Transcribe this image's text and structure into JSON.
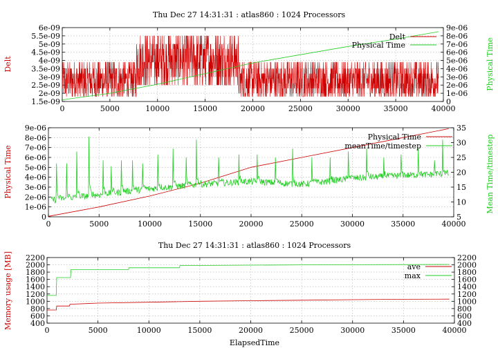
{
  "figure": {
    "title_top": "Thu Dec 27 14:31:31 : atlas860 : 1024 Processors",
    "title_bottom": "Thu Dec 27 14:31:31 : atlas860 : 1024 Processors"
  },
  "colors": {
    "red": "#cc0000",
    "green": "#22cc22",
    "grid": "#b0b0b0"
  },
  "chart_data": [
    {
      "type": "line",
      "title": "Thu Dec 27 14:31:31 : atlas860 : 1024 Processors",
      "xlabel": "",
      "ylabel": "Delt",
      "y2label": "Physical Time",
      "xlim": [
        0,
        40000
      ],
      "ylim": [
        1.5e-09,
        6e-09
      ],
      "y2lim": [
        0,
        9e-06
      ],
      "xticks": [
        "0",
        "5000",
        "10000",
        "15000",
        "20000",
        "25000",
        "30000",
        "35000",
        "40000"
      ],
      "yticks": [
        "1.5e-09",
        "2e-09",
        "2.5e-09",
        "3e-09",
        "3.5e-09",
        "4e-09",
        "4.5e-09",
        "5e-09",
        "5.5e-09",
        "6e-09"
      ],
      "y2ticks": [
        "0",
        "1e-06",
        "2e-06",
        "3e-06",
        "4e-06",
        "5e-06",
        "6e-06",
        "7e-06",
        "8e-06",
        "9e-06"
      ],
      "legend": "top-right",
      "grid": true,
      "series": [
        {
          "name": "Delt",
          "axis": "y",
          "color": "#cc0000",
          "style": "noisy",
          "segments": [
            {
              "x_start": 0,
              "x_end": 7800,
              "levels": [
                1.8e-09,
                2e-09,
                2.3e-09,
                2.6e-09,
                2.9e-09,
                3.2e-09,
                3.5e-09,
                3.9e-09
              ]
            },
            {
              "x_start": 7800,
              "x_end": 18500,
              "levels": [
                2.5e-09,
                3e-09,
                3.5e-09,
                3.9e-09,
                4.3e-09,
                4.7e-09,
                5e-09,
                5.5e-09
              ]
            },
            {
              "x_start": 18500,
              "x_end": 39500,
              "levels": [
                1.8e-09,
                2e-09,
                2.3e-09,
                2.6e-09,
                2.9e-09,
                3.2e-09,
                3.5e-09,
                3.9e-09
              ]
            }
          ]
        },
        {
          "name": "Physical Time",
          "axis": "y2",
          "color": "#22cc22",
          "x": [
            0,
            5000,
            10000,
            15000,
            20000,
            25000,
            30000,
            35000,
            39500
          ],
          "y": [
            2e-07,
            1e-06,
            2.1e-06,
            3.4e-06,
            4.7e-06,
            5.7e-06,
            6.7e-06,
            7.6e-06,
            8.5e-06
          ]
        }
      ]
    },
    {
      "type": "line",
      "title": "",
      "xlabel": "",
      "ylabel": "Physical Time",
      "y2label": "Mean Time/timestep",
      "xlim": [
        0,
        40000
      ],
      "ylim": [
        0,
        9e-06
      ],
      "y2lim": [
        5,
        35
      ],
      "xticks": [
        "0",
        "5000",
        "10000",
        "15000",
        "20000",
        "25000",
        "30000",
        "35000",
        "40000"
      ],
      "yticks": [
        "0",
        "1e-06",
        "2e-06",
        "3e-06",
        "4e-06",
        "5e-06",
        "6e-06",
        "7e-06",
        "8e-06",
        "9e-06"
      ],
      "y2ticks": [
        "5",
        "10",
        "15",
        "20",
        "25",
        "30",
        "35"
      ],
      "legend": "top-right",
      "grid": true,
      "series": [
        {
          "name": "Physical Time",
          "axis": "y",
          "color": "#cc0000",
          "x": [
            0,
            5000,
            10000,
            15000,
            20000,
            25000,
            30000,
            35000,
            39500
          ],
          "y": [
            5e-08,
            1e-06,
            2.1e-06,
            3.4e-06,
            5e-06,
            6e-06,
            7e-06,
            8e-06,
            8.9e-06
          ]
        },
        {
          "name": "meanTime/timestep",
          "axis": "y2",
          "color": "#22cc22",
          "base": {
            "x": [
              0,
              1000,
              5000,
              10000,
              15000,
              20000,
              25000,
              30000,
              35000,
              39500
            ],
            "y": [
              10,
              10.5,
              12,
              14,
              15.5,
              16.5,
              15.5,
              17.5,
              18.5,
              19
            ]
          },
          "spikes": [
            {
              "x": 800,
              "y": 23
            },
            {
              "x": 1800,
              "y": 23
            },
            {
              "x": 2800,
              "y": 27
            },
            {
              "x": 4000,
              "y": 32
            },
            {
              "x": 5400,
              "y": 24
            },
            {
              "x": 6200,
              "y": 22
            },
            {
              "x": 7200,
              "y": 24
            },
            {
              "x": 8300,
              "y": 24
            },
            {
              "x": 9300,
              "y": 23
            },
            {
              "x": 10800,
              "y": 26
            },
            {
              "x": 12300,
              "y": 28
            },
            {
              "x": 13600,
              "y": 25
            },
            {
              "x": 14600,
              "y": 31
            },
            {
              "x": 16800,
              "y": 25
            },
            {
              "x": 18800,
              "y": 26
            },
            {
              "x": 20600,
              "y": 26
            },
            {
              "x": 22400,
              "y": 25
            },
            {
              "x": 24100,
              "y": 28
            },
            {
              "x": 26000,
              "y": 25
            },
            {
              "x": 27800,
              "y": 25
            },
            {
              "x": 29600,
              "y": 27
            },
            {
              "x": 31400,
              "y": 28
            },
            {
              "x": 33100,
              "y": 25
            },
            {
              "x": 34800,
              "y": 26
            },
            {
              "x": 36500,
              "y": 28
            },
            {
              "x": 38100,
              "y": 24
            },
            {
              "x": 38900,
              "y": 31
            }
          ]
        }
      ]
    },
    {
      "type": "line",
      "title": "Thu Dec 27 14:31:31 : atlas860 : 1024 Processors",
      "xlabel": "ElapsedTime",
      "ylabel": "Memory usage [MB]",
      "xlim": [
        0,
        40000
      ],
      "ylim": [
        400,
        2200
      ],
      "y2lim": [
        400,
        2200
      ],
      "xticks": [
        "0",
        "5000",
        "10000",
        "15000",
        "20000",
        "25000",
        "30000",
        "35000",
        "40000"
      ],
      "yticks": [
        "400",
        "600",
        "800",
        "1000",
        "1200",
        "1400",
        "1600",
        "1800",
        "2000",
        "2200"
      ],
      "y2ticks": [
        "400",
        "600",
        "800",
        "1000",
        "1200",
        "1400",
        "1600",
        "1800",
        "2000",
        "2200"
      ],
      "legend": "top-right",
      "grid": true,
      "series": [
        {
          "name": "ave",
          "color": "#cc0000",
          "x": [
            0,
            900,
            950,
            2200,
            2250,
            5000,
            10000,
            15000,
            20000,
            25000,
            30000,
            35000,
            39500
          ],
          "y": [
            760,
            760,
            870,
            870,
            920,
            950,
            975,
            1000,
            1015,
            1030,
            1045,
            1055,
            1060
          ]
        },
        {
          "name": "max",
          "color": "#22cc22",
          "x": [
            0,
            900,
            950,
            2300,
            2350,
            8000,
            8050,
            13000,
            13050,
            25000,
            39500
          ],
          "y": [
            1160,
            1160,
            1650,
            1650,
            1870,
            1870,
            1920,
            1920,
            1980,
            2000,
            2010
          ]
        }
      ]
    }
  ]
}
